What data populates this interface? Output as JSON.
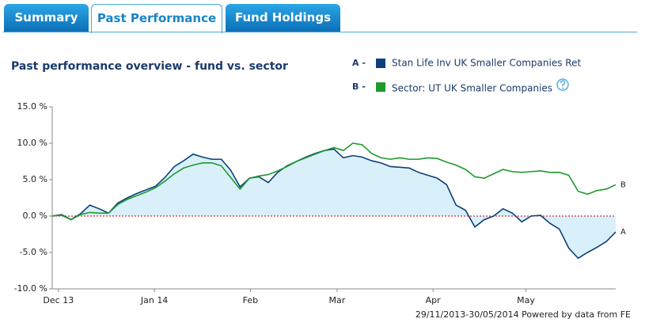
{
  "tabs": [
    "Summary",
    "Past Performance",
    "Fund Holdings"
  ],
  "active_tab": 1,
  "chart_data": {
    "type": "line",
    "title": "Past performance overview - fund vs. sector",
    "xlim": [
      "2013-11-29",
      "2014-05-30"
    ],
    "xticks": [
      {
        "value": "2013-12",
        "label": "Dec 13"
      },
      {
        "value": "2014-01",
        "label": "Jan 14"
      },
      {
        "value": "2014-02",
        "label": "Feb"
      },
      {
        "value": "2014-03",
        "label": "Mar"
      },
      {
        "value": "2014-04",
        "label": "Apr"
      },
      {
        "value": "2014-05",
        "label": "May"
      }
    ],
    "ylim": [
      -10,
      15
    ],
    "yticks": [
      {
        "value": 15,
        "label": "15.0 %"
      },
      {
        "value": 10,
        "label": "10.0 %"
      },
      {
        "value": 5,
        "label": "5.0 %"
      },
      {
        "value": 0,
        "label": "0.0 %"
      },
      {
        "value": -5,
        "label": "-5.0 %"
      },
      {
        "value": -10,
        "label": "-10.0 %"
      }
    ],
    "zero_line_color": "#cc0000",
    "area_color": "#d9f0fa",
    "series": [
      {
        "name": "Stan Life Inv UK Smaller Companies Ret",
        "legend_prefix": "A -",
        "end_label": "A",
        "color": "#0d3f7a",
        "area": true,
        "values": [
          0,
          0.2,
          -0.5,
          0.3,
          1.5,
          1.0,
          0.4,
          1.8,
          2.5,
          3.1,
          3.6,
          4.1,
          5.3,
          6.8,
          7.6,
          8.5,
          8.1,
          7.8,
          7.8,
          6.3,
          4.0,
          5.2,
          5.4,
          4.6,
          6.0,
          6.9,
          7.5,
          8.1,
          8.6,
          9.0,
          9.2,
          8.0,
          8.3,
          8.1,
          7.6,
          7.3,
          6.8,
          6.7,
          6.6,
          6.0,
          5.6,
          5.2,
          4.3,
          1.5,
          0.8,
          -1.5,
          -0.5,
          0.0,
          1.0,
          0.4,
          -0.8,
          0.0,
          0.1,
          -1.0,
          -1.8,
          -4.4,
          -5.8,
          -5.0,
          -4.3,
          -3.5,
          -2.2
        ]
      },
      {
        "name": "Sector: UT UK Smaller Companies",
        "legend_prefix": "B -",
        "end_label": "B",
        "color": "#1f9a2e",
        "area": false,
        "values": [
          0,
          0.1,
          -0.5,
          0.2,
          0.5,
          0.4,
          0.4,
          1.6,
          2.3,
          2.8,
          3.3,
          3.9,
          4.8,
          5.8,
          6.6,
          7.0,
          7.3,
          7.3,
          6.9,
          5.3,
          3.7,
          5.2,
          5.5,
          5.7,
          6.2,
          6.8,
          7.5,
          8.0,
          8.5,
          9.0,
          9.4,
          9.0,
          10.0,
          9.8,
          8.6,
          8.0,
          7.8,
          8.0,
          7.8,
          7.8,
          8.0,
          7.9,
          7.4,
          7.0,
          6.4,
          5.4,
          5.2,
          5.8,
          6.4,
          6.1,
          6.0,
          6.1,
          6.2,
          6.0,
          6.0,
          5.6,
          3.4,
          3.0,
          3.5,
          3.7,
          4.3
        ]
      }
    ],
    "footer": "29/11/2013-30/05/2014 Powered by data from FE"
  }
}
